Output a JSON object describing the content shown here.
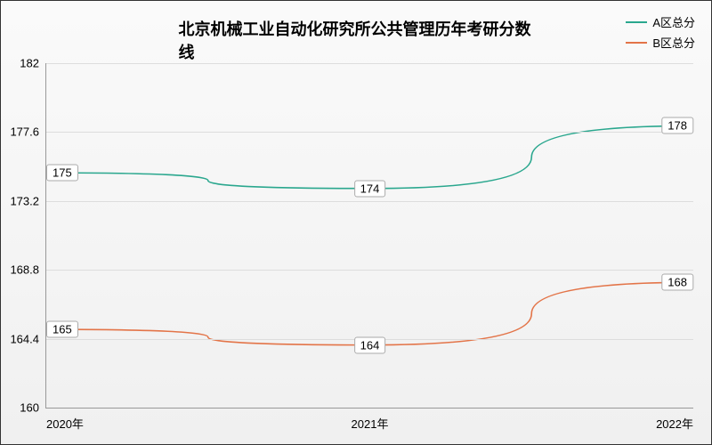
{
  "chart": {
    "type": "line",
    "title": "北京机械工业自动化研究所公共管理历年考研分数线",
    "title_fontsize": 18,
    "title_fontweight": "bold",
    "background_gradient": [
      "#fafafa",
      "#f0f0f0"
    ],
    "border_color": "#333333",
    "ylim": [
      160,
      182
    ],
    "ytick_step": 4.4,
    "yticks": [
      160,
      164.4,
      168.8,
      173.2,
      177.6,
      182
    ],
    "ytick_labels": [
      "160",
      "164.4",
      "168.8",
      "173.2",
      "177.6",
      "182"
    ],
    "grid_color": "#dddddd",
    "axis_color": "#999999",
    "categories": [
      "2020年",
      "2021年",
      "2022年"
    ],
    "x_positions_pct": [
      0,
      50,
      100
    ],
    "label_fontsize": 13,
    "tick_fontsize": 13,
    "datalabel_fontsize": 13,
    "datalabel_bg": "#ffffff",
    "datalabel_border": "#aaaaaa",
    "line_width": 1.6,
    "smooth": true,
    "series": [
      {
        "name": "A区总分",
        "color": "#2aa78e",
        "values": [
          175,
          174,
          178
        ],
        "value_labels": [
          "175",
          "174",
          "178"
        ]
      },
      {
        "name": "B区总分",
        "color": "#e37448",
        "values": [
          165,
          164,
          168
        ],
        "value_labels": [
          "165",
          "164",
          "168"
        ]
      }
    ],
    "legend": {
      "position": "top-right",
      "fontsize": 13,
      "line_length": 24
    }
  }
}
